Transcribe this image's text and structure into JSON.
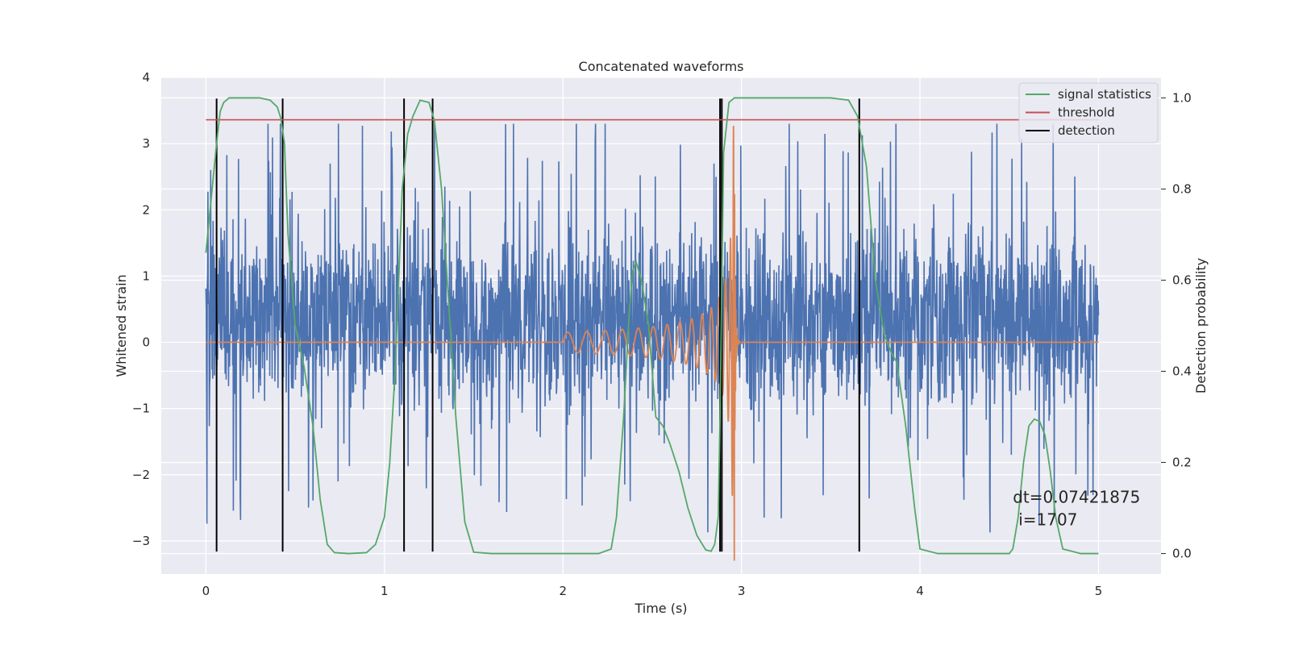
{
  "chart_data": {
    "type": "line",
    "title": "Concatenated waveforms",
    "xlabel": "Time (s)",
    "ylabel": "Whitened strain",
    "y2label": "Detection probability",
    "xlim": [
      -0.25,
      5.35
    ],
    "ylim": [
      -3.5,
      4.0
    ],
    "y2lim": [
      -0.045,
      1.045
    ],
    "x_ticks": [
      0,
      1,
      2,
      3,
      4,
      5
    ],
    "x_tick_labels": [
      "0",
      "1",
      "2",
      "3",
      "4",
      "5"
    ],
    "y_ticks": [
      -3,
      -2,
      -1,
      0,
      1,
      2,
      3,
      4
    ],
    "y_tick_labels": [
      "−3",
      "−2",
      "−1",
      "0",
      "1",
      "2",
      "3",
      "4"
    ],
    "y2_ticks": [
      0.0,
      0.2,
      0.4,
      0.6,
      0.8,
      1.0
    ],
    "y2_tick_labels": [
      "0.0",
      "0.2",
      "0.4",
      "0.6",
      "0.8",
      "1.0"
    ],
    "grid": true,
    "legend_position": "top-right",
    "legend": [
      {
        "label": "signal statistics",
        "color": "#55a868"
      },
      {
        "label": "threshold",
        "color": "#c44e52"
      },
      {
        "label": "detection",
        "color": "#000000"
      }
    ],
    "annotation": {
      "lines": [
        "dt=0.07421875",
        "i=1707"
      ],
      "x": 4.52,
      "y": -2.42
    },
    "series": [
      {
        "kind": "strain-noise",
        "axis": "left",
        "color": "#4c72b0",
        "x_start": 0.0,
        "x_end": 5.0,
        "typical_range": [
          -1.5,
          2.3
        ],
        "extremes_range": [
          -3.2,
          3.3
        ]
      },
      {
        "kind": "injected-chirp",
        "axis": "left",
        "color": "#dd8452",
        "x_start": 0.0,
        "x_end": 5.0,
        "chirp_start": 2.0,
        "chirp_peak": 2.96,
        "chirp_end": 2.99,
        "start_amplitude": 0.15,
        "peak_amplitude": 3.3
      },
      {
        "name": "signal statistics",
        "axis": "right",
        "color": "#55a868",
        "x": [
          0.0,
          0.03,
          0.06,
          0.08,
          0.1,
          0.13,
          0.16,
          0.2,
          0.3,
          0.36,
          0.4,
          0.42,
          0.44,
          0.46,
          0.5,
          0.55,
          0.6,
          0.64,
          0.68,
          0.72,
          0.8,
          0.9,
          0.95,
          1.0,
          1.03,
          1.06,
          1.08,
          1.1,
          1.13,
          1.16,
          1.2,
          1.25,
          1.28,
          1.32,
          1.36,
          1.4,
          1.45,
          1.5,
          1.6,
          1.8,
          2.0,
          2.2,
          2.27,
          2.3,
          2.34,
          2.37,
          2.39,
          2.41,
          2.44,
          2.48,
          2.52,
          2.56,
          2.6,
          2.65,
          2.7,
          2.75,
          2.8,
          2.83,
          2.85,
          2.87,
          2.88,
          2.9,
          2.93,
          2.96,
          3.0,
          3.2,
          3.5,
          3.6,
          3.65,
          3.7,
          3.75,
          3.8,
          3.84,
          3.87,
          3.92,
          3.97,
          4.0,
          4.1,
          4.3,
          4.5,
          4.52,
          4.55,
          4.58,
          4.61,
          4.64,
          4.67,
          4.7,
          4.73,
          4.76,
          4.8,
          4.9,
          5.0
        ],
        "y": [
          0.66,
          0.78,
          0.9,
          0.97,
          0.99,
          1.0,
          1.0,
          1.0,
          1.0,
          0.995,
          0.98,
          0.955,
          0.9,
          0.7,
          0.5,
          0.41,
          0.28,
          0.12,
          0.02,
          0.002,
          0.0,
          0.002,
          0.02,
          0.08,
          0.2,
          0.4,
          0.6,
          0.8,
          0.92,
          0.96,
          0.995,
          0.99,
          0.95,
          0.8,
          0.55,
          0.3,
          0.07,
          0.003,
          0.0,
          0.0,
          0.0,
          0.0,
          0.01,
          0.08,
          0.3,
          0.52,
          0.62,
          0.64,
          0.6,
          0.5,
          0.3,
          0.28,
          0.24,
          0.18,
          0.1,
          0.04,
          0.008,
          0.005,
          0.02,
          0.08,
          0.3,
          0.88,
          0.99,
          1.0,
          1.0,
          1.0,
          1.0,
          0.995,
          0.96,
          0.85,
          0.6,
          0.48,
          0.44,
          0.42,
          0.28,
          0.1,
          0.01,
          0.0,
          0.0,
          0.0,
          0.01,
          0.08,
          0.2,
          0.28,
          0.295,
          0.29,
          0.26,
          0.18,
          0.08,
          0.01,
          0.0,
          0.0
        ]
      },
      {
        "name": "threshold",
        "axis": "right",
        "color": "#c44e52",
        "x": [
          0.0,
          5.0
        ],
        "y": [
          0.952,
          0.952
        ]
      },
      {
        "name": "detection",
        "axis": "left",
        "color": "#000000",
        "style": "vertical-lines",
        "x": [
          0.06,
          0.43,
          1.11,
          1.27,
          2.88,
          2.89,
          3.66
        ],
        "y_range": [
          -3.16,
          3.68
        ]
      }
    ]
  }
}
